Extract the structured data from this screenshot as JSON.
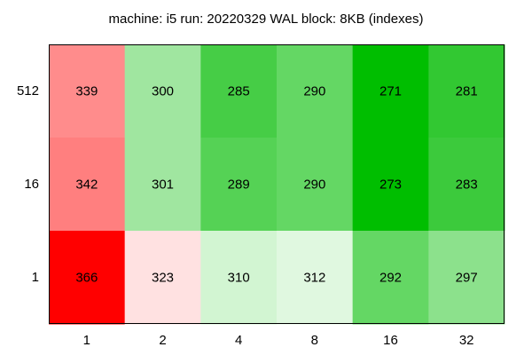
{
  "chart_data": {
    "type": "heatmap",
    "title": "machine: i5 run: 20220329 WAL block: 8KB (indexes)",
    "xlabel": "",
    "ylabel": "",
    "x_categories": [
      "1",
      "2",
      "4",
      "8",
      "16",
      "32"
    ],
    "y_categories": [
      "512",
      "16",
      "1"
    ],
    "values": [
      [
        339,
        300,
        285,
        290,
        271,
        281
      ],
      [
        342,
        301,
        289,
        290,
        273,
        283
      ],
      [
        366,
        323,
        310,
        312,
        292,
        297
      ]
    ],
    "colors": [
      [
        "#ff8c8c",
        "#a0e6a0",
        "#46cd46",
        "#64d764",
        "#00be00",
        "#32c832"
      ],
      [
        "#ff7f7f",
        "#a0e6a0",
        "#55d255",
        "#64d764",
        "#00be00",
        "#3cca3c"
      ],
      [
        "#ff0000",
        "#ffe1e1",
        "#d2f5d2",
        "#e0f8e0",
        "#64d764",
        "#8ce18c"
      ]
    ],
    "grid": false,
    "legend": "none"
  }
}
